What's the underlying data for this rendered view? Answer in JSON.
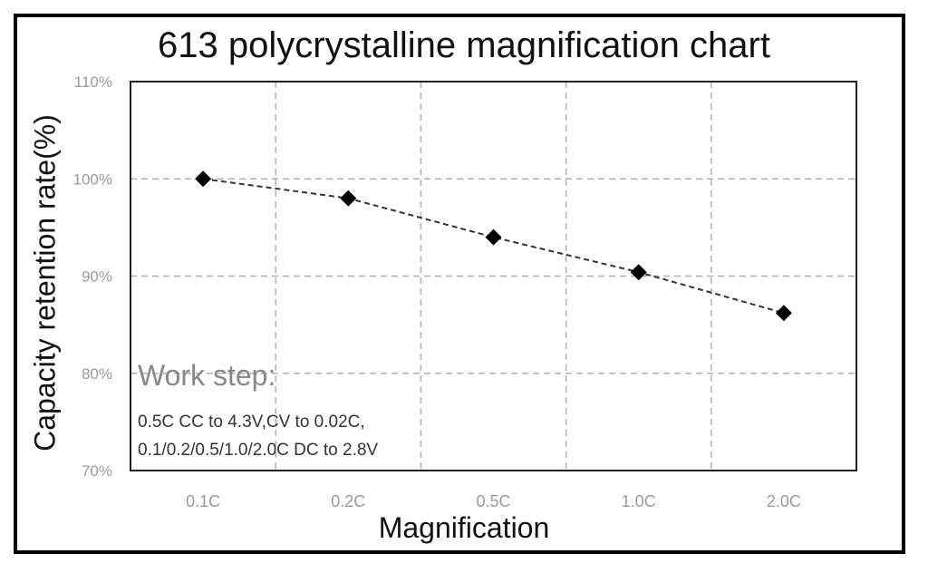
{
  "chart_data": {
    "type": "line",
    "title": "613 polycrystalline magnification chart",
    "xlabel": "Magnification",
    "ylabel": "Capacity retention rate(%)",
    "categories": [
      "0.1C",
      "0.2C",
      "0.5C",
      "1.0C",
      "2.0C"
    ],
    "series": [
      {
        "values": [
          100,
          98,
          94,
          90.4,
          86.2
        ]
      }
    ],
    "ylim": [
      70,
      110
    ],
    "yticks": [
      70,
      80,
      90,
      100,
      110
    ],
    "ytick_labels": [
      "70%",
      "80%",
      "90%",
      "100%",
      "110%"
    ],
    "grid": true,
    "line_style": "dashed",
    "marker": "diamond",
    "colors": {
      "line": "#333333",
      "marker": "#000000",
      "grid": "#b0b0b0"
    },
    "annotation": {
      "heading": "Work step:",
      "lines": [
        "0.5C CC to 4.3V,CV to 0.02C,",
        "0.1/0.2/0.5/1.0/2.0C DC to 2.8V"
      ]
    }
  }
}
